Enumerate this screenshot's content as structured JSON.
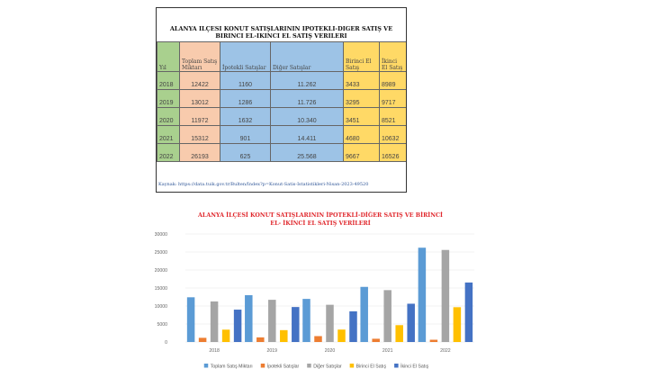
{
  "table": {
    "title": "ALANYA ILÇESI KONUT SATIŞLARININ IPOTEKLI-DIGER SATIŞ VE BIRINCI EL-IKINCI EL SATIŞ VERILERI",
    "headers": [
      "Yıl",
      "Toplam Satış Miktarı",
      "İpotekli Satışlar",
      "Diğer Satışlar",
      "Birinci El Satış",
      "İkinci El Satış"
    ],
    "rows": [
      [
        "2018",
        "12422",
        "1160",
        "11.262",
        "3433",
        "8989"
      ],
      [
        "2019",
        "13012",
        "1286",
        "11.726",
        "3295",
        "9717"
      ],
      [
        "2020",
        "11972",
        "1632",
        "10.340",
        "3451",
        "8521"
      ],
      [
        "2021",
        "15312",
        "901",
        "14.411",
        "4680",
        "10632"
      ],
      [
        "2022",
        "26193",
        "625",
        "25.568",
        "9667",
        "16526"
      ]
    ],
    "source": "Kaynak: https://data.tuik.gov.tr/Bulten/Index?p=Konut-Satis-Istatistikleri-Nisan-2023-49520"
  },
  "chart_data": {
    "type": "bar",
    "title": "ALANYA İLÇESİ KONUT SATIŞLARININ İPOTEKLİ-DİĞER SATIŞ VE BİRİNCİ EL- İKİNCİ EL SATIŞ VERİLERİ",
    "categories": [
      "2018",
      "2019",
      "2020",
      "2021",
      "2022"
    ],
    "ylim": [
      0,
      30000
    ],
    "yticks": [
      "0",
      "5000",
      "10000",
      "15000",
      "20000",
      "25000",
      "30000"
    ],
    "grid": true,
    "legend": "bottom",
    "series": [
      {
        "name": "Toplam Satış Miktarı",
        "color": "#5b9bd5",
        "values": [
          12422,
          13012,
          11972,
          15312,
          26193
        ]
      },
      {
        "name": "İpotekli Satışlar",
        "color": "#ed7d31",
        "values": [
          1160,
          1286,
          1632,
          901,
          625
        ]
      },
      {
        "name": "Diğer Satışlar",
        "color": "#a5a5a5",
        "values": [
          11262,
          11726,
          10340,
          14411,
          25568
        ]
      },
      {
        "name": "Birinci El Satış",
        "color": "#ffc000",
        "values": [
          3433,
          3295,
          3451,
          4680,
          9667
        ]
      },
      {
        "name": "İkinci El Satış",
        "color": "#4472c4",
        "values": [
          8989,
          9717,
          8521,
          10632,
          16526
        ]
      }
    ]
  }
}
